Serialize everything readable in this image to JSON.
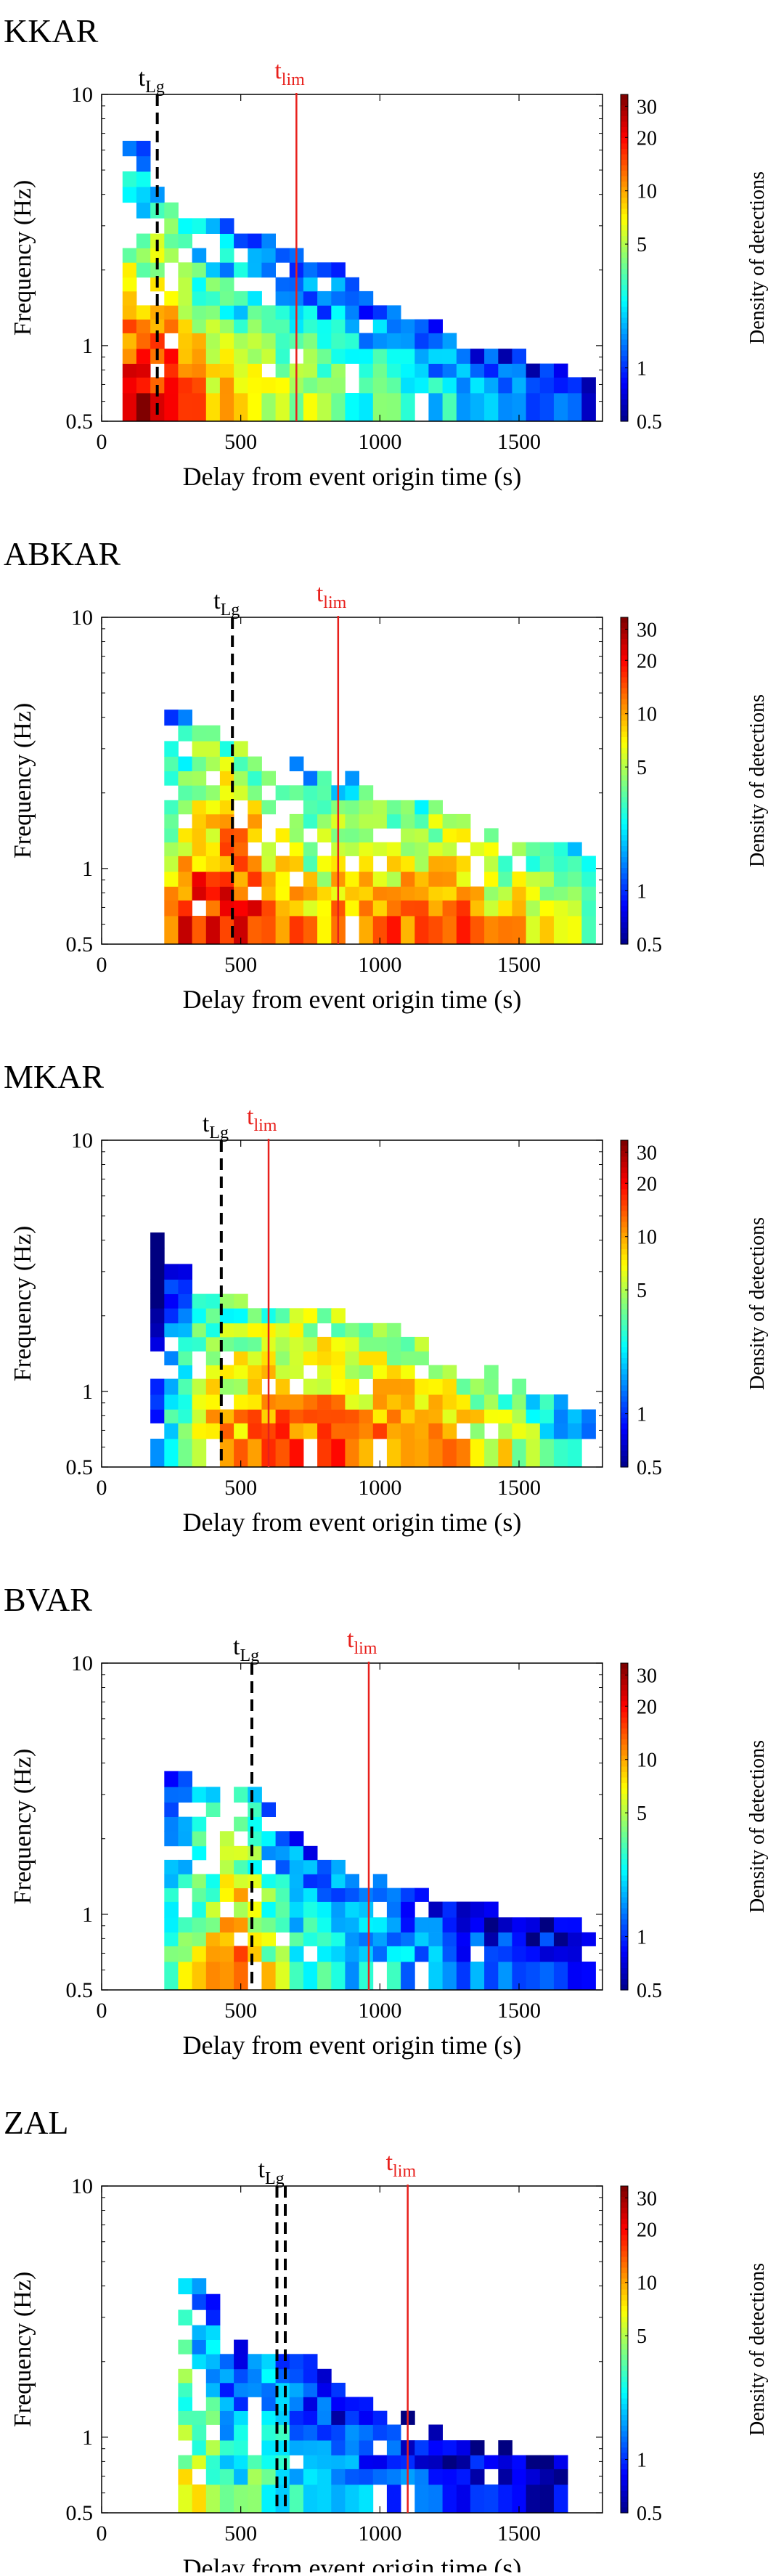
{
  "figure": {
    "ylabel": "Frequency (Hz)",
    "xlabel": "Delay from event origin time (s)",
    "colorbar_label": "Density of detections",
    "y_ticks": [
      "10",
      "1",
      "0.5"
    ],
    "x_ticks": [
      "0",
      "500",
      "1000",
      "1500"
    ],
    "colorbar_ticks": [
      "30",
      "20",
      "10",
      "5",
      "1",
      "0.5"
    ],
    "lg_marker": {
      "main": "t",
      "sub": "Lg"
    },
    "lim_marker": {
      "main": "t",
      "sub": "lim"
    },
    "colors": {
      "tlim_line": "#e8201c",
      "tlg_line": "#000000",
      "frame": "#000000"
    },
    "colormap": "jet"
  },
  "chart_data": [
    {
      "type": "heatmap",
      "title": "KKAR",
      "x_unit": "s",
      "y_unit": "Hz",
      "xlim": [
        0,
        1800
      ],
      "ylim": [
        0.5,
        10
      ],
      "y_scale": "log",
      "color_scale": "log",
      "clim": [
        0.5,
        35
      ],
      "t_lg": [
        200
      ],
      "t_lim": 700,
      "col_x": [
        100,
        150,
        200,
        250,
        300,
        350,
        400,
        450,
        500,
        550,
        600,
        650,
        700,
        750,
        800,
        850,
        900,
        950,
        1000,
        1050,
        1100,
        1150,
        1200,
        1250,
        1300,
        1350,
        1400,
        1450,
        1500,
        1550,
        1600,
        1650,
        1700,
        1750
      ],
      "freq_centers": [
        0.6,
        0.7,
        0.8,
        0.9,
        1.05,
        1.2,
        1.35,
        1.55,
        1.75,
        2.0,
        2.3,
        2.6,
        3.0,
        3.45,
        4.0,
        4.6,
        5.3,
        6.1,
        7.0
      ],
      "profile": [
        30,
        28,
        27,
        25,
        18,
        14,
        12,
        11,
        9,
        8,
        7,
        7,
        6,
        6,
        5,
        5,
        4.5,
        4,
        4,
        3.5,
        3.2,
        3,
        2.7,
        2.5,
        2.2,
        2,
        1.8,
        1.6,
        1.5,
        1.3,
        1.2,
        1.1,
        1,
        0.9
      ],
      "ext": [
        7.5,
        6.5,
        4.5,
        3.5,
        3.2,
        3,
        3,
        3,
        3,
        2.8,
        2.6,
        2.4,
        2.3,
        2.2,
        2.1,
        2,
        1.8,
        1.6,
        1.5,
        1.4,
        1.3,
        1.2,
        1.2,
        1.1,
        1,
        1,
        0.95,
        0.9,
        0.9,
        0.85,
        0.8,
        0.8,
        0.75,
        0.7
      ],
      "decay": 0.9,
      "seed": 11
    },
    {
      "type": "heatmap",
      "title": "ABKAR",
      "x_unit": "s",
      "y_unit": "Hz",
      "xlim": [
        0,
        1800
      ],
      "ylim": [
        0.5,
        10
      ],
      "y_scale": "log",
      "color_scale": "log",
      "clim": [
        0.5,
        35
      ],
      "t_lg": [
        470
      ],
      "t_lim": 850,
      "col_x": [
        250,
        300,
        350,
        400,
        450,
        500,
        550,
        600,
        650,
        700,
        750,
        800,
        850,
        900,
        950,
        1000,
        1050,
        1100,
        1150,
        1200,
        1250,
        1300,
        1350,
        1400,
        1450,
        1500,
        1550,
        1600,
        1650,
        1700,
        1750
      ],
      "freq_centers": [
        0.6,
        0.7,
        0.8,
        0.9,
        1.05,
        1.2,
        1.35,
        1.55,
        1.75,
        2.0,
        2.3,
        2.6,
        3.0,
        3.45,
        4.0,
        4.6,
        5.3,
        6.1,
        7.0
      ],
      "profile": [
        14,
        20,
        24,
        25,
        28,
        26,
        22,
        18,
        14,
        12,
        11,
        12,
        13,
        12,
        14,
        13,
        14,
        15,
        14,
        15,
        13,
        14,
        12,
        11,
        10,
        9,
        8,
        7,
        6,
        5,
        4
      ],
      "ext": [
        4,
        4,
        4,
        3.6,
        3.3,
        3,
        2.8,
        2.6,
        2.4,
        2.6,
        2.4,
        2.4,
        2.5,
        2.3,
        2.2,
        2.1,
        2,
        1.9,
        1.8,
        1.8,
        1.7,
        1.6,
        1.5,
        1.4,
        1.4,
        1.3,
        1.3,
        1.2,
        1.2,
        1.2,
        1.1
      ],
      "decay": 0.8,
      "seed": 23
    },
    {
      "type": "heatmap",
      "title": "MKAR",
      "x_unit": "s",
      "y_unit": "Hz",
      "xlim": [
        0,
        1800
      ],
      "ylim": [
        0.5,
        10
      ],
      "y_scale": "log",
      "color_scale": "log",
      "clim": [
        0.5,
        35
      ],
      "t_lg": [
        430
      ],
      "t_lim": 600,
      "col_x": [
        200,
        250,
        300,
        350,
        400,
        450,
        500,
        550,
        600,
        650,
        700,
        750,
        800,
        850,
        900,
        950,
        1000,
        1050,
        1100,
        1150,
        1200,
        1250,
        1300,
        1350,
        1400,
        1450,
        1500,
        1550,
        1600,
        1650,
        1700,
        1750
      ],
      "freq_centers": [
        0.6,
        0.7,
        0.8,
        0.9,
        1.05,
        1.2,
        1.35,
        1.55,
        1.75,
        2.0,
        2.3,
        2.6,
        3.0,
        3.45,
        4.0,
        4.6,
        5.3,
        6.1,
        7.0
      ],
      "profile": [
        2,
        4,
        6,
        9,
        11,
        13,
        14,
        15,
        15,
        16,
        15,
        16,
        16,
        15,
        15,
        14,
        14,
        13,
        13,
        12,
        11,
        11,
        10,
        9,
        8,
        7,
        6,
        5,
        4,
        3,
        2.5,
        2
      ],
      "ext": [
        4,
        3.2,
        3,
        2.8,
        2.6,
        2.4,
        2.3,
        2.2,
        2.2,
        2.1,
        2.1,
        2,
        2,
        2,
        1.9,
        1.9,
        1.8,
        1.8,
        1.7,
        1.6,
        1.5,
        1.4,
        1.3,
        1.3,
        1.2,
        1.1,
        1.1,
        1,
        0.95,
        0.9,
        0.85,
        0.8
      ],
      "decay": 0.7,
      "seed": 37
    },
    {
      "type": "heatmap",
      "title": "BVAR",
      "x_unit": "s",
      "y_unit": "Hz",
      "xlim": [
        0,
        1800
      ],
      "ylim": [
        0.5,
        10
      ],
      "y_scale": "log",
      "color_scale": "log",
      "clim": [
        0.5,
        35
      ],
      "t_lg": [
        540
      ],
      "t_lim": 960,
      "col_x": [
        250,
        300,
        350,
        400,
        450,
        500,
        550,
        600,
        650,
        700,
        750,
        800,
        850,
        900,
        950,
        1000,
        1050,
        1100,
        1150,
        1200,
        1250,
        1300,
        1350,
        1400,
        1450,
        1500,
        1550,
        1600,
        1650,
        1700,
        1750
      ],
      "freq_centers": [
        0.6,
        0.7,
        0.8,
        0.9,
        1.05,
        1.2,
        1.35,
        1.55,
        1.75,
        2.0,
        2.3,
        2.6,
        3.0,
        3.45,
        4.0,
        4.6,
        5.3,
        6.1,
        7.0
      ],
      "profile": [
        4,
        6,
        8,
        9,
        12,
        14,
        10,
        7,
        5,
        4,
        3.5,
        3,
        3,
        2.6,
        2.5,
        2.4,
        2.2,
        2,
        1.8,
        1.7,
        1.6,
        1.5,
        1.4,
        1.3,
        1.3,
        1.2,
        1.1,
        1.1,
        1,
        1,
        0.9
      ],
      "ext": [
        3.5,
        3.5,
        3,
        3,
        3.3,
        3.1,
        3,
        2.6,
        2.2,
        2,
        1.8,
        1.7,
        1.6,
        1.5,
        1.7,
        1.4,
        1.3,
        1.3,
        1.2,
        1.2,
        1.1,
        1.1,
        1.1,
        1.05,
        1,
        1,
        1,
        0.95,
        0.9,
        0.9,
        0.85
      ],
      "decay": 0.65,
      "seed": 51
    },
    {
      "type": "heatmap",
      "title": "ZAL",
      "x_unit": "s",
      "y_unit": "Hz",
      "xlim": [
        0,
        1800
      ],
      "ylim": [
        0.5,
        10
      ],
      "y_scale": "log",
      "color_scale": "log",
      "clim": [
        0.5,
        35
      ],
      "t_lg": [
        630,
        660
      ],
      "t_lim": 1100,
      "col_x": [
        300,
        350,
        400,
        450,
        500,
        550,
        600,
        650,
        700,
        750,
        800,
        850,
        900,
        950,
        1000,
        1050,
        1100,
        1150,
        1200,
        1250,
        1300,
        1350,
        1400,
        1450,
        1500,
        1550,
        1600,
        1650
      ],
      "freq_centers": [
        0.6,
        0.7,
        0.8,
        0.9,
        1.05,
        1.2,
        1.35,
        1.55,
        1.75,
        2.0,
        2.3,
        2.6,
        3.0,
        3.45,
        4.0,
        4.6,
        5.3,
        6.1,
        7.0
      ],
      "profile": [
        8,
        7,
        5,
        3,
        3,
        4,
        4,
        3.5,
        2.5,
        2,
        2,
        1.8,
        1.7,
        1.6,
        1.5,
        1.4,
        1.3,
        1.2,
        1.1,
        1,
        1,
        0.95,
        0.9,
        0.9,
        0.85,
        0.8,
        0.8,
        0.75
      ],
      "ext": [
        4.2,
        4,
        3.5,
        2.2,
        2.3,
        2.2,
        2.1,
        2.4,
        2,
        2,
        1.8,
        1.6,
        1.5,
        1.5,
        1.3,
        1.3,
        1.2,
        1.1,
        1.1,
        1,
        1,
        0.95,
        0.9,
        0.9,
        0.85,
        0.8,
        0.8,
        0.8
      ],
      "decay": 0.55,
      "seed": 67
    }
  ]
}
